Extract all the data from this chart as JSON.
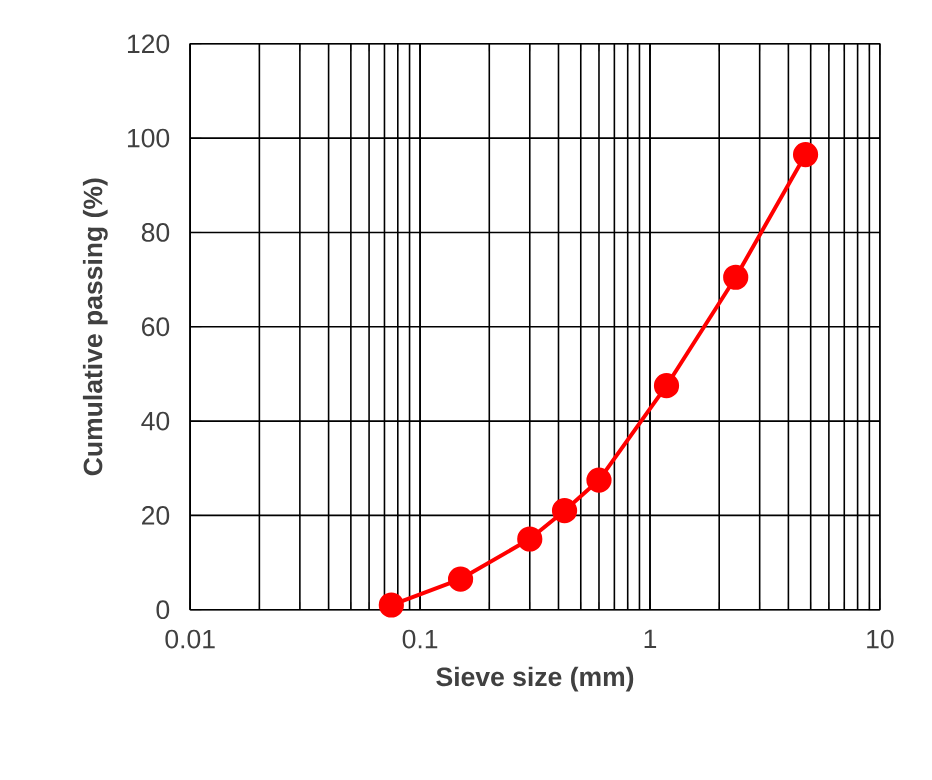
{
  "chart_data": {
    "type": "line",
    "xlabel": "Sieve size (mm)",
    "ylabel": "Cumulative passing (%)",
    "x": [
      0.075,
      0.15,
      0.3,
      0.425,
      0.6,
      1.18,
      2.36,
      4.75
    ],
    "series": [
      {
        "color": "#ff0000",
        "values": [
          1,
          6.5,
          15,
          21,
          27.5,
          47.5,
          70.5,
          96.5
        ]
      }
    ],
    "log": "x",
    "xlim": [
      0.01,
      10
    ],
    "xticks": [
      0.01,
      0.1,
      1,
      10
    ],
    "ylim": [
      0,
      120
    ],
    "yticks": [
      0,
      20,
      40,
      60,
      80,
      100,
      120
    ],
    "grid": true,
    "marker": "circle",
    "line_style": "solid"
  }
}
